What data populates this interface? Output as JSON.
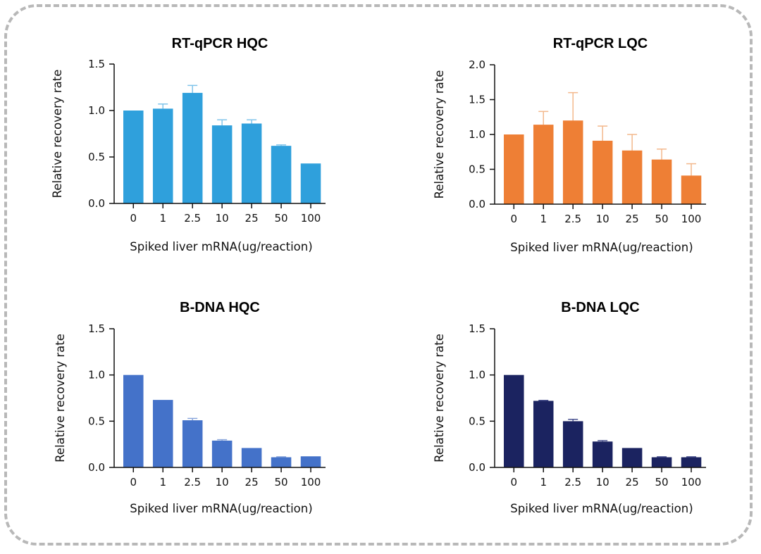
{
  "chart_data": [
    {
      "type": "bar",
      "title": "RT-qPCR HQC",
      "xlabel": "Spiked liver mRNA(ug/reaction)",
      "ylabel": "Relative recovery rate",
      "categories": [
        "0",
        "1",
        "2.5",
        "10",
        "25",
        "50",
        "100"
      ],
      "values": [
        1.0,
        1.02,
        1.19,
        0.84,
        0.86,
        0.62,
        0.43
      ],
      "error_upper": [
        0,
        0.05,
        0.08,
        0.06,
        0.04,
        0.01,
        0
      ],
      "ylim": [
        0,
        1.5
      ],
      "yticks": [
        "0.0",
        "0.5",
        "1.0",
        "1.5"
      ],
      "color": "#2fa0dc",
      "error_color": "#7fc4ea"
    },
    {
      "type": "bar",
      "title": "RT-qPCR LQC",
      "xlabel": "Spiked liver mRNA(ug/reaction)",
      "ylabel": "Relative recovery rate",
      "categories": [
        "0",
        "1",
        "2.5",
        "10",
        "25",
        "50",
        "100"
      ],
      "values": [
        1.0,
        1.14,
        1.2,
        0.91,
        0.77,
        0.64,
        0.41
      ],
      "error_upper": [
        0,
        0.19,
        0.4,
        0.21,
        0.23,
        0.15,
        0.17
      ],
      "ylim": [
        0,
        2.0
      ],
      "yticks": [
        "0.0",
        "0.5",
        "1.0",
        "1.5",
        "2.0"
      ],
      "color": "#ee7f35",
      "error_color": "#f3b88c"
    },
    {
      "type": "bar",
      "title": "B-DNA HQC",
      "xlabel": "Spiked liver mRNA(ug/reaction)",
      "ylabel": "Relative recovery rate",
      "categories": [
        "0",
        "1",
        "2.5",
        "10",
        "25",
        "50",
        "100"
      ],
      "values": [
        1.0,
        0.73,
        0.51,
        0.29,
        0.21,
        0.11,
        0.12
      ],
      "error_upper": [
        0,
        0,
        0.02,
        0.01,
        0,
        0.005,
        0
      ],
      "ylim": [
        0,
        1.5
      ],
      "yticks": [
        "0.0",
        "0.5",
        "1.0",
        "1.5"
      ],
      "color": "#4472c9",
      "error_color": "#8aa6dc"
    },
    {
      "type": "bar",
      "title": "B-DNA LQC",
      "xlabel": "Spiked liver mRNA(ug/reaction)",
      "ylabel": "Relative recovery rate",
      "categories": [
        "0",
        "1",
        "2.5",
        "10",
        "25",
        "50",
        "100"
      ],
      "values": [
        1.0,
        0.72,
        0.5,
        0.28,
        0.21,
        0.11,
        0.11
      ],
      "error_upper": [
        0,
        0.005,
        0.02,
        0.01,
        0,
        0.005,
        0.005
      ],
      "ylim": [
        0,
        1.5
      ],
      "yticks": [
        "0.0",
        "0.5",
        "1.0",
        "1.5"
      ],
      "color": "#1b2360",
      "error_color": "#4a5290"
    }
  ]
}
